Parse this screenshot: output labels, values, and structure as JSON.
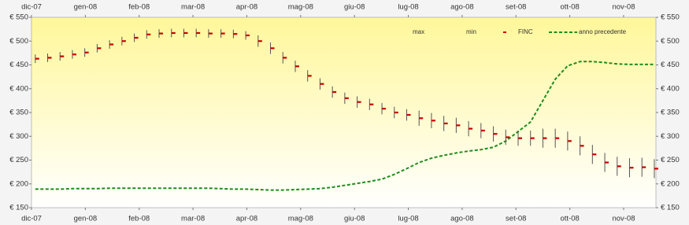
{
  "chart_data": {
    "type": "hlc",
    "x": [
      0.07,
      0.3,
      0.53,
      0.76,
      0.99,
      1.22,
      1.45,
      1.68,
      1.91,
      2.14,
      2.37,
      2.6,
      2.83,
      3.06,
      3.29,
      3.52,
      3.75,
      3.98,
      4.21,
      4.44,
      4.67,
      4.9,
      5.13,
      5.36,
      5.59,
      5.82,
      6.05,
      6.28,
      6.51,
      6.74,
      6.97,
      7.2,
      7.43,
      7.66,
      7.89,
      8.12,
      8.35,
      8.58,
      8.81,
      9.04,
      9.27,
      9.5,
      9.73,
      9.96,
      10.19,
      10.42,
      10.65,
      10.88,
      11.11,
      11.34,
      11.57
    ],
    "xlim": [
      0,
      11.6
    ],
    "xticks": [
      {
        "value": 0,
        "label": "dic-07"
      },
      {
        "value": 1,
        "label": "gen-08"
      },
      {
        "value": 2,
        "label": "feb-08"
      },
      {
        "value": 3,
        "label": "mar-08"
      },
      {
        "value": 4,
        "label": "apr-08"
      },
      {
        "value": 5,
        "label": "mag-08"
      },
      {
        "value": 6,
        "label": "giu-08"
      },
      {
        "value": 7,
        "label": "lug-08"
      },
      {
        "value": 8,
        "label": "ago-08"
      },
      {
        "value": 9,
        "label": "set-08"
      },
      {
        "value": 10,
        "label": "ott-08"
      },
      {
        "value": 11,
        "label": "nov-08"
      }
    ],
    "ylim": [
      150,
      550
    ],
    "yticks": [
      {
        "value": 150,
        "label": "€ 150"
      },
      {
        "value": 200,
        "label": "€ 200"
      },
      {
        "value": 250,
        "label": "€ 250"
      },
      {
        "value": 300,
        "label": "€ 300"
      },
      {
        "value": 350,
        "label": "€ 350"
      },
      {
        "value": 400,
        "label": "€ 400"
      },
      {
        "value": 450,
        "label": "€ 450"
      },
      {
        "value": 500,
        "label": "€ 500"
      },
      {
        "value": 550,
        "label": "€ 550"
      }
    ],
    "series": [
      {
        "name": "max",
        "color": "#cc0000",
        "values": [
          472,
          474,
          477,
          481,
          485,
          494,
          502,
          509,
          516,
          523,
          525,
          526,
          526,
          526,
          525,
          525,
          524,
          521,
          512,
          497,
          477,
          459,
          439,
          422,
          405,
          392,
          384,
          379,
          370,
          362,
          357,
          354,
          349,
          343,
          339,
          332,
          328,
          321,
          314,
          312,
          312,
          316,
          316,
          310,
          300,
          282,
          265,
          257,
          254,
          255,
          252
        ]
      },
      {
        "name": "min",
        "color": "#cc0000",
        "values": [
          454,
          456,
          459,
          463,
          467,
          476,
          484,
          491,
          498,
          505,
          507,
          508,
          508,
          508,
          507,
          507,
          506,
          503,
          488,
          473,
          453,
          435,
          415,
          398,
          381,
          368,
          360,
          355,
          346,
          338,
          333,
          322,
          317,
          311,
          307,
          300,
          296,
          289,
          282,
          280,
          280,
          276,
          276,
          270,
          260,
          242,
          225,
          217,
          214,
          215,
          212
        ]
      },
      {
        "name": "FINC",
        "color": "#cc0000",
        "values": [
          463,
          465,
          468,
          472,
          476,
          485,
          493,
          500,
          507,
          514,
          516,
          517,
          517,
          517,
          516,
          516,
          515,
          512,
          500,
          485,
          465,
          447,
          427,
          410,
          393,
          380,
          372,
          367,
          358,
          350,
          345,
          338,
          333,
          327,
          323,
          316,
          312,
          305,
          298,
          296,
          296,
          296,
          296,
          290,
          280,
          262,
          245,
          237,
          234,
          235,
          232
        ]
      },
      {
        "name": "anno precedente",
        "color": "#1e8c1e",
        "dashed": true,
        "values": [
          189,
          189,
          189,
          190,
          190,
          190,
          191,
          191,
          191,
          191,
          191,
          191,
          191,
          191,
          191,
          190,
          189,
          189,
          188,
          187,
          187,
          188,
          189,
          190,
          193,
          197,
          201,
          205,
          210,
          220,
          232,
          245,
          254,
          260,
          265,
          269,
          272,
          277,
          290,
          310,
          330,
          375,
          420,
          448,
          457,
          457,
          455,
          452,
          451,
          451,
          451
        ]
      }
    ]
  }
}
